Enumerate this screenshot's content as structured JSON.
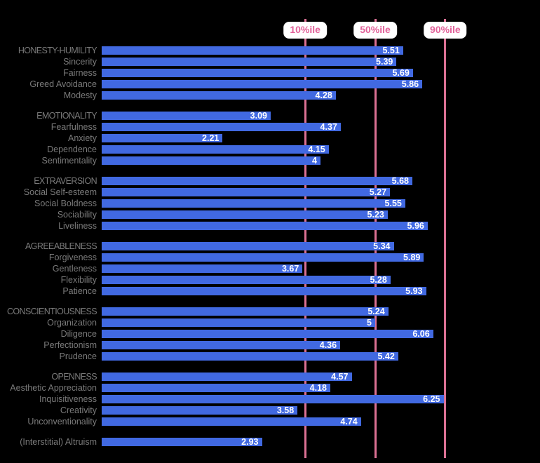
{
  "colors": {
    "background": "#000000",
    "bar": "#4169E1",
    "percentile_line": "#DB7093",
    "chip_bg": "#FFFFFF",
    "chip_text": "#E2629A",
    "row_label": "#7A7A7A",
    "value_label": "#FFFFFF"
  },
  "chart_data": {
    "type": "bar",
    "orientation": "horizontal",
    "value_axis": {
      "min": 0,
      "max": 7.2,
      "visible": false
    },
    "legend": "none",
    "percentile_lines": [
      {
        "label": "10%ile",
        "value": 3.72
      },
      {
        "label": "50%ile",
        "value": 5.0
      },
      {
        "label": "90%ile",
        "value": 6.28
      }
    ],
    "groups": [
      {
        "name": "honesty-humility",
        "rows": [
          {
            "label": "HONESTY-HUMILITY",
            "value": 5.51,
            "display": "5.51",
            "level": "factor"
          },
          {
            "label": "Sincerity",
            "value": 5.39,
            "display": "5.39",
            "level": "facet"
          },
          {
            "label": "Fairness",
            "value": 5.69,
            "display": "5.69",
            "level": "facet"
          },
          {
            "label": "Greed Avoidance",
            "value": 5.86,
            "display": "5.86",
            "level": "facet"
          },
          {
            "label": "Modesty",
            "value": 4.28,
            "display": "4.28",
            "level": "facet"
          }
        ]
      },
      {
        "name": "emotionality",
        "rows": [
          {
            "label": "EMOTIONALITY",
            "value": 3.09,
            "display": "3.09",
            "level": "factor"
          },
          {
            "label": "Fearfulness",
            "value": 4.37,
            "display": "4.37",
            "level": "facet"
          },
          {
            "label": "Anxiety",
            "value": 2.21,
            "display": "2.21",
            "level": "facet"
          },
          {
            "label": "Dependence",
            "value": 4.15,
            "display": "4.15",
            "level": "facet"
          },
          {
            "label": "Sentimentality",
            "value": 4,
            "display": "4",
            "level": "facet"
          }
        ]
      },
      {
        "name": "extraversion",
        "rows": [
          {
            "label": "EXTRAVERSION",
            "value": 5.68,
            "display": "5.68",
            "level": "factor"
          },
          {
            "label": "Social Self-esteem",
            "value": 5.27,
            "display": "5.27",
            "level": "facet"
          },
          {
            "label": "Social Boldness",
            "value": 5.55,
            "display": "5.55",
            "level": "facet"
          },
          {
            "label": "Sociability",
            "value": 5.23,
            "display": "5.23",
            "level": "facet"
          },
          {
            "label": "Liveliness",
            "value": 5.96,
            "display": "5.96",
            "level": "facet"
          }
        ]
      },
      {
        "name": "agreeableness",
        "rows": [
          {
            "label": "AGREEABLENESS",
            "value": 5.34,
            "display": "5.34",
            "level": "factor"
          },
          {
            "label": "Forgiveness",
            "value": 5.89,
            "display": "5.89",
            "level": "facet"
          },
          {
            "label": "Gentleness",
            "value": 3.67,
            "display": "3.67",
            "level": "facet"
          },
          {
            "label": "Flexibility",
            "value": 5.28,
            "display": "5.28",
            "level": "facet"
          },
          {
            "label": "Patience",
            "value": 5.93,
            "display": "5.93",
            "level": "facet"
          }
        ]
      },
      {
        "name": "conscientiousness",
        "rows": [
          {
            "label": "CONSCIENTIOUSNESS",
            "value": 5.24,
            "display": "5.24",
            "level": "factor"
          },
          {
            "label": "Organization",
            "value": 5,
            "display": "5",
            "level": "facet"
          },
          {
            "label": "Diligence",
            "value": 6.06,
            "display": "6.06",
            "level": "facet"
          },
          {
            "label": "Perfectionism",
            "value": 4.36,
            "display": "4.36",
            "level": "facet"
          },
          {
            "label": "Prudence",
            "value": 5.42,
            "display": "5.42",
            "level": "facet"
          }
        ]
      },
      {
        "name": "openness",
        "rows": [
          {
            "label": "OPENNESS",
            "value": 4.57,
            "display": "4.57",
            "level": "factor"
          },
          {
            "label": "Aesthetic Appreciation",
            "value": 4.18,
            "display": "4.18",
            "level": "facet"
          },
          {
            "label": "Inquisitiveness",
            "value": 6.25,
            "display": "6.25",
            "level": "facet"
          },
          {
            "label": "Creativity",
            "value": 3.58,
            "display": "3.58",
            "level": "facet"
          },
          {
            "label": "Unconventionality",
            "value": 4.74,
            "display": "4.74",
            "level": "facet"
          }
        ]
      },
      {
        "name": "altruism",
        "rows": [
          {
            "label": "(Interstitial) Altruism",
            "value": 2.93,
            "display": "2.93",
            "level": "interstitial"
          }
        ]
      }
    ]
  }
}
